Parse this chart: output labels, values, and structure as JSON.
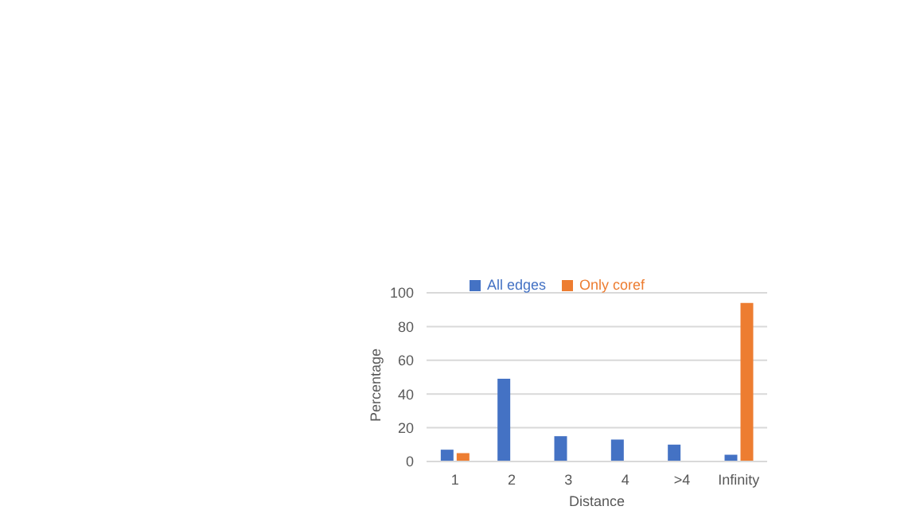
{
  "chart_data": {
    "type": "bar",
    "xlabel": "Distance",
    "ylabel": "Percentage",
    "categories": [
      "1",
      "2",
      "3",
      "4",
      ">4",
      "Infinity"
    ],
    "series": [
      {
        "name": "All edges",
        "color": "#4472c4",
        "values": [
          7,
          49,
          15,
          13,
          10,
          4
        ]
      },
      {
        "name": "Only coref",
        "color": "#ed7d31",
        "values": [
          5,
          0,
          0,
          0,
          0,
          94
        ]
      }
    ],
    "ylim": [
      0,
      100
    ],
    "yticks": [
      0,
      20,
      40,
      60,
      80,
      100
    ],
    "grid": "y",
    "legend": "top"
  }
}
